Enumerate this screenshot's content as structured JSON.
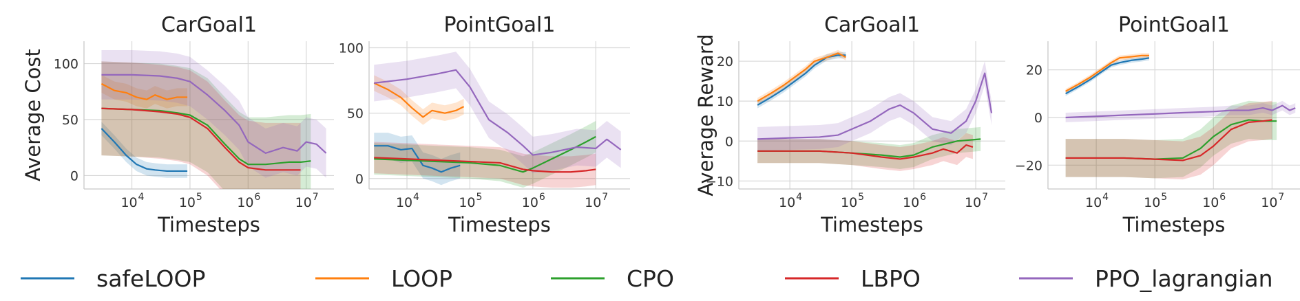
{
  "legend": [
    {
      "name": "safeLOOP",
      "color": "#1f77b4"
    },
    {
      "name": "LOOP",
      "color": "#ff7f0e"
    },
    {
      "name": "CPO",
      "color": "#2ca02c"
    },
    {
      "name": "LBPO",
      "color": "#d62728"
    },
    {
      "name": "PPO_lagrangian",
      "color": "#9467bd"
    }
  ],
  "chart_data": [
    {
      "type": "line",
      "title": "CarGoal1",
      "xlabel": "Timesteps",
      "ylabel": "Average Cost",
      "xscale": "log",
      "xlim": [
        1500,
        30000000
      ],
      "ylim": [
        -12,
        120
      ],
      "xticks": [
        10000,
        100000,
        1000000,
        10000000
      ],
      "xtick_labels": [
        "10",
        "10",
        "10",
        "10"
      ],
      "xtick_exps": [
        "4",
        "5",
        "6",
        "7"
      ],
      "yticks": [
        0,
        50,
        100
      ],
      "ytick_labels": [
        "0",
        "50",
        "100"
      ],
      "grid": true,
      "series": [
        {
          "name": "safeLOOP",
          "color": "#1f77b4",
          "x": [
            3000,
            5000,
            8000,
            12000,
            18000,
            25000,
            40000,
            60000,
            90000
          ],
          "y": [
            42,
            30,
            18,
            10,
            6,
            5,
            4,
            4,
            4
          ],
          "band": 6
        },
        {
          "name": "LOOP",
          "color": "#ff7f0e",
          "x": [
            3000,
            5000,
            8000,
            12000,
            18000,
            25000,
            40000,
            60000,
            90000
          ],
          "y": [
            82,
            76,
            74,
            70,
            68,
            72,
            68,
            70,
            70
          ],
          "band": 8
        },
        {
          "name": "CPO",
          "color": "#2ca02c",
          "x": [
            3000,
            10000,
            30000,
            60000,
            100000,
            200000,
            400000,
            700000,
            1000000,
            2000000,
            5000000,
            8000000,
            12000000
          ],
          "y": [
            60,
            59,
            58,
            56,
            54,
            45,
            28,
            15,
            10,
            10,
            12,
            12,
            13
          ],
          "band": 42
        },
        {
          "name": "LBPO",
          "color": "#d62728",
          "x": [
            3000,
            10000,
            30000,
            60000,
            100000,
            200000,
            400000,
            700000,
            1000000,
            2000000,
            5000000,
            8000000
          ],
          "y": [
            60,
            59,
            57,
            55,
            52,
            42,
            25,
            12,
            7,
            5,
            5,
            5
          ],
          "band": 42
        },
        {
          "name": "PPO_lagrangian",
          "color": "#9467bd",
          "x": [
            3000,
            10000,
            30000,
            60000,
            100000,
            200000,
            400000,
            700000,
            1000000,
            2000000,
            4000000,
            7000000,
            10000000,
            15000000,
            22000000
          ],
          "y": [
            90,
            90,
            89,
            87,
            84,
            72,
            58,
            45,
            30,
            20,
            25,
            22,
            30,
            28,
            20
          ],
          "band": 22
        }
      ]
    },
    {
      "type": "line",
      "title": "PointGoal1",
      "xlabel": "Timesteps",
      "ylabel": "",
      "xscale": "log",
      "xlim": [
        2500,
        35000000
      ],
      "ylim": [
        -8,
        105
      ],
      "xticks": [
        10000,
        100000,
        1000000,
        10000000
      ],
      "xtick_labels": [
        "10",
        "10",
        "10",
        "10"
      ],
      "xtick_exps": [
        "4",
        "5",
        "6",
        "7"
      ],
      "yticks": [
        0,
        50,
        100
      ],
      "ytick_labels": [
        "0",
        "50",
        "100"
      ],
      "grid": true,
      "series": [
        {
          "name": "safeLOOP",
          "color": "#1f77b4",
          "x": [
            3000,
            5000,
            8000,
            12000,
            18000,
            25000,
            35000,
            50000,
            70000
          ],
          "y": [
            25,
            25,
            22,
            23,
            10,
            8,
            5,
            8,
            10
          ],
          "band": 10
        },
        {
          "name": "LOOP",
          "color": "#ff7f0e",
          "x": [
            3000,
            5000,
            8000,
            12000,
            18000,
            25000,
            40000,
            60000,
            80000
          ],
          "y": [
            73,
            68,
            62,
            54,
            47,
            52,
            50,
            52,
            55
          ],
          "band": 6
        },
        {
          "name": "CPO",
          "color": "#2ca02c",
          "x": [
            3000,
            10000,
            30000,
            100000,
            300000,
            700000,
            1000000,
            2000000,
            4000000,
            7000000,
            10000000
          ],
          "y": [
            15,
            14,
            13,
            12,
            10,
            5,
            8,
            15,
            22,
            28,
            32
          ],
          "band": 12
        },
        {
          "name": "LBPO",
          "color": "#d62728",
          "x": [
            3000,
            10000,
            30000,
            100000,
            300000,
            700000,
            1000000,
            2000000,
            4000000,
            7000000,
            10000000
          ],
          "y": [
            16,
            15,
            14,
            13,
            12,
            7,
            6,
            5,
            5,
            6,
            7
          ],
          "band": 12
        },
        {
          "name": "PPO_lagrangian",
          "color": "#9467bd",
          "x": [
            3000,
            10000,
            30000,
            60000,
            100000,
            200000,
            400000,
            700000,
            1000000,
            2000000,
            5000000,
            10000000,
            15000000,
            25000000
          ],
          "y": [
            73,
            76,
            80,
            83,
            70,
            45,
            35,
            25,
            18,
            20,
            24,
            23,
            30,
            22
          ],
          "band": 14
        }
      ]
    },
    {
      "type": "line",
      "title": "CarGoal1",
      "xlabel": "Timesteps",
      "ylabel": "Average Reward",
      "xscale": "log",
      "xlim": [
        1500,
        30000000
      ],
      "ylim": [
        -12,
        25
      ],
      "xticks": [
        10000,
        100000,
        1000000,
        10000000
      ],
      "xtick_labels": [
        "10",
        "10",
        "10",
        "10"
      ],
      "xtick_exps": [
        "4",
        "5",
        "6",
        "7"
      ],
      "yticks": [
        -10,
        0,
        10,
        20
      ],
      "ytick_labels": [
        "−10",
        "0",
        "10",
        "20"
      ],
      "grid": true,
      "series": [
        {
          "name": "safeLOOP",
          "color": "#1f77b4",
          "x": [
            3000,
            5000,
            8000,
            12000,
            18000,
            25000,
            40000,
            60000,
            80000
          ],
          "y": [
            9,
            11,
            13,
            15,
            17,
            19,
            21,
            21.5,
            21.5
          ],
          "band": 0.8
        },
        {
          "name": "LOOP",
          "color": "#ff7f0e",
          "x": [
            3000,
            5000,
            8000,
            12000,
            18000,
            25000,
            40000,
            60000,
            80000
          ],
          "y": [
            10,
            12,
            14,
            16,
            18,
            20,
            21,
            22,
            21
          ],
          "band": 0.8
        },
        {
          "name": "CPO",
          "color": "#2ca02c",
          "x": [
            3000,
            10000,
            30000,
            100000,
            300000,
            600000,
            1000000,
            2000000,
            5000000,
            12000000
          ],
          "y": [
            -2.5,
            -2.5,
            -2.5,
            -3,
            -3.5,
            -4,
            -3.5,
            -1.5,
            0,
            0.5
          ],
          "band": 3
        },
        {
          "name": "LBPO",
          "color": "#d62728",
          "x": [
            3000,
            10000,
            30000,
            100000,
            300000,
            600000,
            1000000,
            2000000,
            3000000,
            5000000,
            7000000,
            9000000
          ],
          "y": [
            -2.5,
            -2.5,
            -2.5,
            -3,
            -4,
            -4.5,
            -4,
            -3,
            -2,
            -3,
            -1,
            -1.5
          ],
          "band": 3
        },
        {
          "name": "PPO_lagrangian",
          "color": "#9467bd",
          "x": [
            3000,
            10000,
            30000,
            60000,
            100000,
            200000,
            400000,
            600000,
            1000000,
            2000000,
            4000000,
            7000000,
            10000000,
            14000000,
            18000000
          ],
          "y": [
            0.5,
            0.8,
            1,
            1.5,
            3,
            5,
            8,
            9,
            7,
            3,
            2,
            5,
            10,
            17,
            7
          ],
          "band": 3
        }
      ]
    },
    {
      "type": "line",
      "title": "PointGoal1",
      "xlabel": "Timesteps",
      "ylabel": "",
      "xscale": "log",
      "xlim": [
        1500,
        30000000
      ],
      "ylim": [
        -30,
        32
      ],
      "xticks": [
        10000,
        100000,
        1000000,
        10000000
      ],
      "xtick_labels": [
        "10",
        "10",
        "10",
        "10"
      ],
      "xtick_exps": [
        "4",
        "5",
        "6",
        "7"
      ],
      "yticks": [
        -20,
        0,
        20
      ],
      "ytick_labels": [
        "−20",
        "0",
        "20"
      ],
      "grid": true,
      "series": [
        {
          "name": "safeLOOP",
          "color": "#1f77b4",
          "x": [
            3000,
            5000,
            8000,
            12000,
            18000,
            25000,
            40000,
            60000,
            80000
          ],
          "y": [
            10,
            13,
            16,
            19,
            22,
            23,
            24,
            24.5,
            25
          ],
          "band": 1
        },
        {
          "name": "LOOP",
          "color": "#ff7f0e",
          "x": [
            3000,
            5000,
            8000,
            12000,
            18000,
            25000,
            40000,
            60000,
            80000
          ],
          "y": [
            11,
            14,
            17,
            20,
            23,
            25,
            25.5,
            26,
            26
          ],
          "band": 1
        },
        {
          "name": "CPO",
          "color": "#2ca02c",
          "x": [
            3000,
            10000,
            30000,
            100000,
            300000,
            600000,
            1000000,
            2000000,
            4000000,
            7000000,
            12000000
          ],
          "y": [
            -17,
            -17,
            -17,
            -17.5,
            -17,
            -13,
            -8,
            -3,
            -1,
            -1.5,
            -1.5
          ],
          "band": 8
        },
        {
          "name": "LBPO",
          "color": "#d62728",
          "x": [
            3000,
            10000,
            30000,
            100000,
            300000,
            600000,
            1000000,
            2000000,
            4000000,
            7000000,
            10000000
          ],
          "y": [
            -17,
            -17,
            -17,
            -17.5,
            -18,
            -16,
            -12,
            -5,
            -2,
            -1.5,
            -1
          ],
          "band": 8
        },
        {
          "name": "PPO_lagrangian",
          "color": "#9467bd",
          "x": [
            3000,
            10000,
            30000,
            100000,
            300000,
            1000000,
            2000000,
            4000000,
            7000000,
            10000000,
            15000000,
            20000000,
            25000000
          ],
          "y": [
            0,
            0.5,
            1,
            1.5,
            2,
            2.5,
            3,
            3,
            4,
            3,
            5,
            3,
            4
          ],
          "band": 2
        }
      ]
    }
  ]
}
